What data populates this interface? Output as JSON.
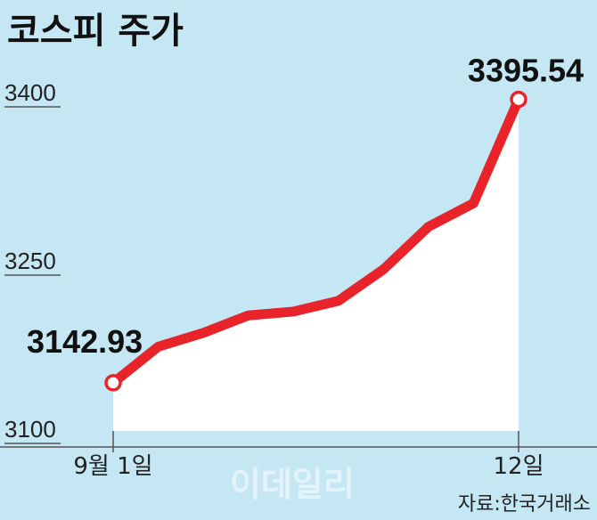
{
  "title": "코스피 주가",
  "source": "자료:한국거래소",
  "watermark": "이데일리",
  "colors": {
    "background": "#c5e6f3",
    "line": "#e8232a",
    "area": "#ffffff",
    "axis": "#555555"
  },
  "chart_data": {
    "type": "line",
    "title": "코스피 주가",
    "xlabel": "",
    "ylabel": "",
    "ylim": [
      3100,
      3400
    ],
    "yticks": [
      "3400",
      "3250",
      "3100"
    ],
    "xticks": [
      "9월 1일",
      "12일"
    ],
    "area_fill": true,
    "grid": false,
    "x": [
      "9월 1일",
      "",
      "",
      "",
      "",
      "",
      "",
      "",
      "",
      "12일"
    ],
    "values": [
      3142.93,
      3175.1,
      3187.4,
      3203.0,
      3206.4,
      3216.0,
      3244.0,
      3282.0,
      3303.0,
      3395.54
    ],
    "annotations": [
      {
        "label": "3142.93",
        "index": 0
      },
      {
        "label": "3395.54",
        "index": 9
      }
    ]
  }
}
